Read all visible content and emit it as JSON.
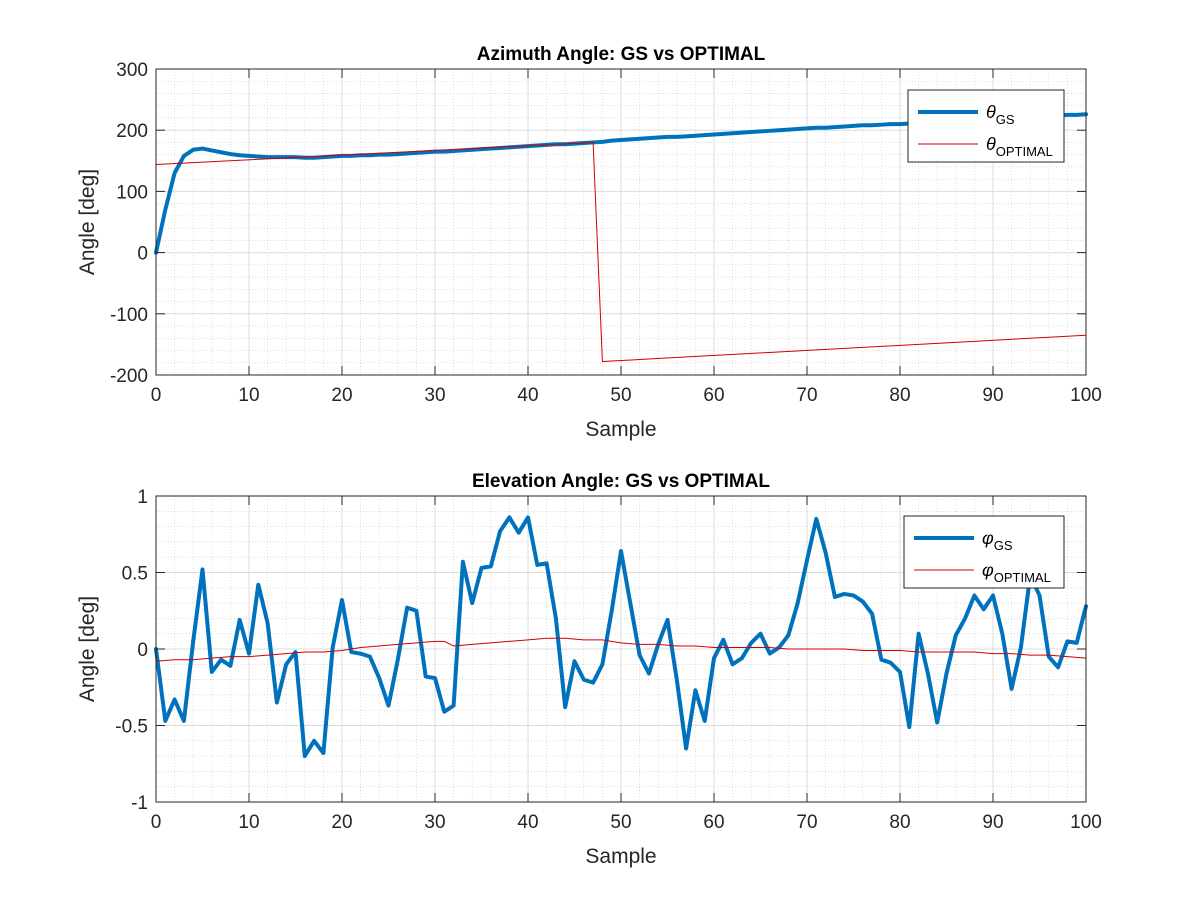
{
  "chart_data": [
    {
      "type": "line",
      "title": "Azimuth Angle: GS vs OPTIMAL",
      "xlabel": "Sample",
      "ylabel": "Angle [deg]",
      "xlim": [
        0,
        100
      ],
      "ylim": [
        -200,
        300
      ],
      "xticks": [
        0,
        10,
        20,
        30,
        40,
        50,
        60,
        70,
        80,
        90,
        100
      ],
      "yticks": [
        -200,
        -100,
        0,
        100,
        200,
        300
      ],
      "grid": true,
      "minor_grid": true,
      "legend_position": "top-right",
      "series": [
        {
          "name": "θ_GS",
          "legend_symbol": "θ",
          "legend_subscript": "GS",
          "color": "#0072BD",
          "line_width": "thick",
          "x": [
            0,
            1,
            2,
            3,
            4,
            5,
            6,
            7,
            8,
            9,
            10,
            11,
            12,
            13,
            14,
            15,
            16,
            17,
            18,
            19,
            20,
            21,
            22,
            23,
            24,
            25,
            26,
            27,
            28,
            29,
            30,
            31,
            32,
            33,
            34,
            35,
            36,
            37,
            38,
            39,
            40,
            41,
            42,
            43,
            44,
            45,
            46,
            47,
            48,
            49,
            50,
            51,
            52,
            53,
            54,
            55,
            56,
            57,
            58,
            59,
            60,
            61,
            62,
            63,
            64,
            65,
            66,
            67,
            68,
            69,
            70,
            71,
            72,
            73,
            74,
            75,
            76,
            77,
            78,
            79,
            80,
            81,
            82,
            83,
            84,
            85,
            86,
            87,
            88,
            89,
            90,
            91,
            92,
            93,
            94,
            95,
            96,
            97,
            98,
            99,
            100
          ],
          "y": [
            0,
            70,
            130,
            158,
            168,
            170,
            167,
            164,
            161,
            159,
            158,
            157,
            156,
            156,
            156,
            156,
            155,
            155,
            156,
            157,
            158,
            158,
            159,
            159,
            160,
            160,
            161,
            162,
            163,
            164,
            165,
            165,
            166,
            167,
            168,
            169,
            170,
            171,
            172,
            173,
            174,
            175,
            176,
            177,
            177,
            178,
            179,
            180,
            181,
            183,
            184,
            185,
            186,
            187,
            188,
            189,
            189,
            190,
            191,
            192,
            193,
            194,
            195,
            196,
            197,
            198,
            199,
            200,
            201,
            202,
            203,
            204,
            204,
            205,
            206,
            207,
            208,
            208,
            209,
            210,
            210,
            211,
            212,
            213,
            214,
            215,
            216,
            217,
            218,
            218,
            219,
            220,
            221,
            222,
            222,
            223,
            224,
            224,
            225,
            225,
            226
          ]
        },
        {
          "name": "θ_OPTIMAL",
          "legend_symbol": "θ",
          "legend_subscript": "OPTIMAL",
          "color": "#D00000",
          "line_width": "thin",
          "x": [
            0,
            47,
            48,
            100
          ],
          "y": [
            144,
            180,
            -178,
            -135
          ]
        }
      ]
    },
    {
      "type": "line",
      "title": "Elevation Angle: GS vs OPTIMAL",
      "xlabel": "Sample",
      "ylabel": "Angle [deg]",
      "xlim": [
        0,
        100
      ],
      "ylim": [
        -1,
        1
      ],
      "xticks": [
        0,
        10,
        20,
        30,
        40,
        50,
        60,
        70,
        80,
        90,
        100
      ],
      "yticks": [
        -1,
        -0.5,
        0,
        0.5,
        1
      ],
      "grid": true,
      "minor_grid": true,
      "legend_position": "top-right",
      "series": [
        {
          "name": "φ_GS",
          "legend_symbol": "φ",
          "legend_subscript": "GS",
          "color": "#0072BD",
          "line_width": "thick",
          "x": [
            0,
            1,
            2,
            3,
            4,
            5,
            6,
            7,
            8,
            9,
            10,
            11,
            12,
            13,
            14,
            15,
            16,
            17,
            18,
            19,
            20,
            21,
            22,
            23,
            24,
            25,
            26,
            27,
            28,
            29,
            30,
            31,
            32,
            33,
            34,
            35,
            36,
            37,
            38,
            39,
            40,
            41,
            42,
            43,
            44,
            45,
            46,
            47,
            48,
            49,
            50,
            51,
            52,
            53,
            54,
            55,
            56,
            57,
            58,
            59,
            60,
            61,
            62,
            63,
            64,
            65,
            66,
            67,
            68,
            69,
            70,
            71,
            72,
            73,
            74,
            75,
            76,
            77,
            78,
            79,
            80,
            81,
            82,
            83,
            84,
            85,
            86,
            87,
            88,
            89,
            90,
            91,
            92,
            93,
            94,
            95,
            96,
            97,
            98,
            99,
            100
          ],
          "y": [
            0,
            -0.47,
            -0.33,
            -0.47,
            0.05,
            0.52,
            -0.15,
            -0.07,
            -0.11,
            0.19,
            -0.03,
            0.42,
            0.17,
            -0.35,
            -0.1,
            -0.02,
            -0.7,
            -0.6,
            -0.68,
            0.01,
            0.32,
            -0.02,
            -0.03,
            -0.05,
            -0.19,
            -0.37,
            -0.07,
            0.27,
            0.25,
            -0.18,
            -0.19,
            -0.41,
            -0.37,
            0.57,
            0.3,
            0.53,
            0.54,
            0.77,
            0.86,
            0.76,
            0.86,
            0.55,
            0.56,
            0.2,
            -0.38,
            -0.08,
            -0.2,
            -0.22,
            -0.1,
            0.25,
            0.64,
            0.3,
            -0.04,
            -0.16,
            0.03,
            0.19,
            -0.2,
            -0.65,
            -0.27,
            -0.47,
            -0.06,
            0.06,
            -0.1,
            -0.06,
            0.04,
            0.1,
            -0.03,
            0.01,
            0.09,
            0.3,
            0.58,
            0.85,
            0.63,
            0.34,
            0.36,
            0.35,
            0.31,
            0.23,
            -0.07,
            -0.09,
            -0.15,
            -0.51,
            0.1,
            -0.16,
            -0.48,
            -0.16,
            0.09,
            0.2,
            0.35,
            0.26,
            0.35,
            0.1,
            -0.26,
            0.01,
            0.48,
            0.35,
            -0.05,
            -0.12,
            0.05,
            0.04,
            0.28
          ]
        },
        {
          "name": "φ_OPTIMAL",
          "legend_symbol": "φ",
          "legend_subscript": "OPTIMAL",
          "color": "#D00000",
          "line_width": "thin",
          "x": [
            0,
            2,
            4,
            6,
            8,
            10,
            12,
            14,
            16,
            18,
            20,
            22,
            24,
            26,
            28,
            30,
            31,
            32,
            34,
            36,
            38,
            40,
            42,
            44,
            46,
            48,
            50,
            52,
            54,
            56,
            58,
            60,
            62,
            64,
            66,
            68,
            70,
            72,
            74,
            76,
            78,
            80,
            82,
            84,
            86,
            88,
            90,
            92,
            94,
            96,
            98,
            100
          ],
          "y": [
            -0.08,
            -0.07,
            -0.07,
            -0.06,
            -0.05,
            -0.05,
            -0.04,
            -0.03,
            -0.02,
            -0.02,
            -0.01,
            0.01,
            0.02,
            0.03,
            0.04,
            0.05,
            0.05,
            0.02,
            0.03,
            0.04,
            0.05,
            0.06,
            0.07,
            0.07,
            0.06,
            0.06,
            0.04,
            0.03,
            0.03,
            0.02,
            0.02,
            0.01,
            0.01,
            0.01,
            0.01,
            0.0,
            0.0,
            0.0,
            0.0,
            -0.01,
            -0.01,
            -0.01,
            -0.02,
            -0.02,
            -0.02,
            -0.02,
            -0.03,
            -0.03,
            -0.04,
            -0.04,
            -0.05,
            -0.06
          ]
        }
      ]
    }
  ]
}
